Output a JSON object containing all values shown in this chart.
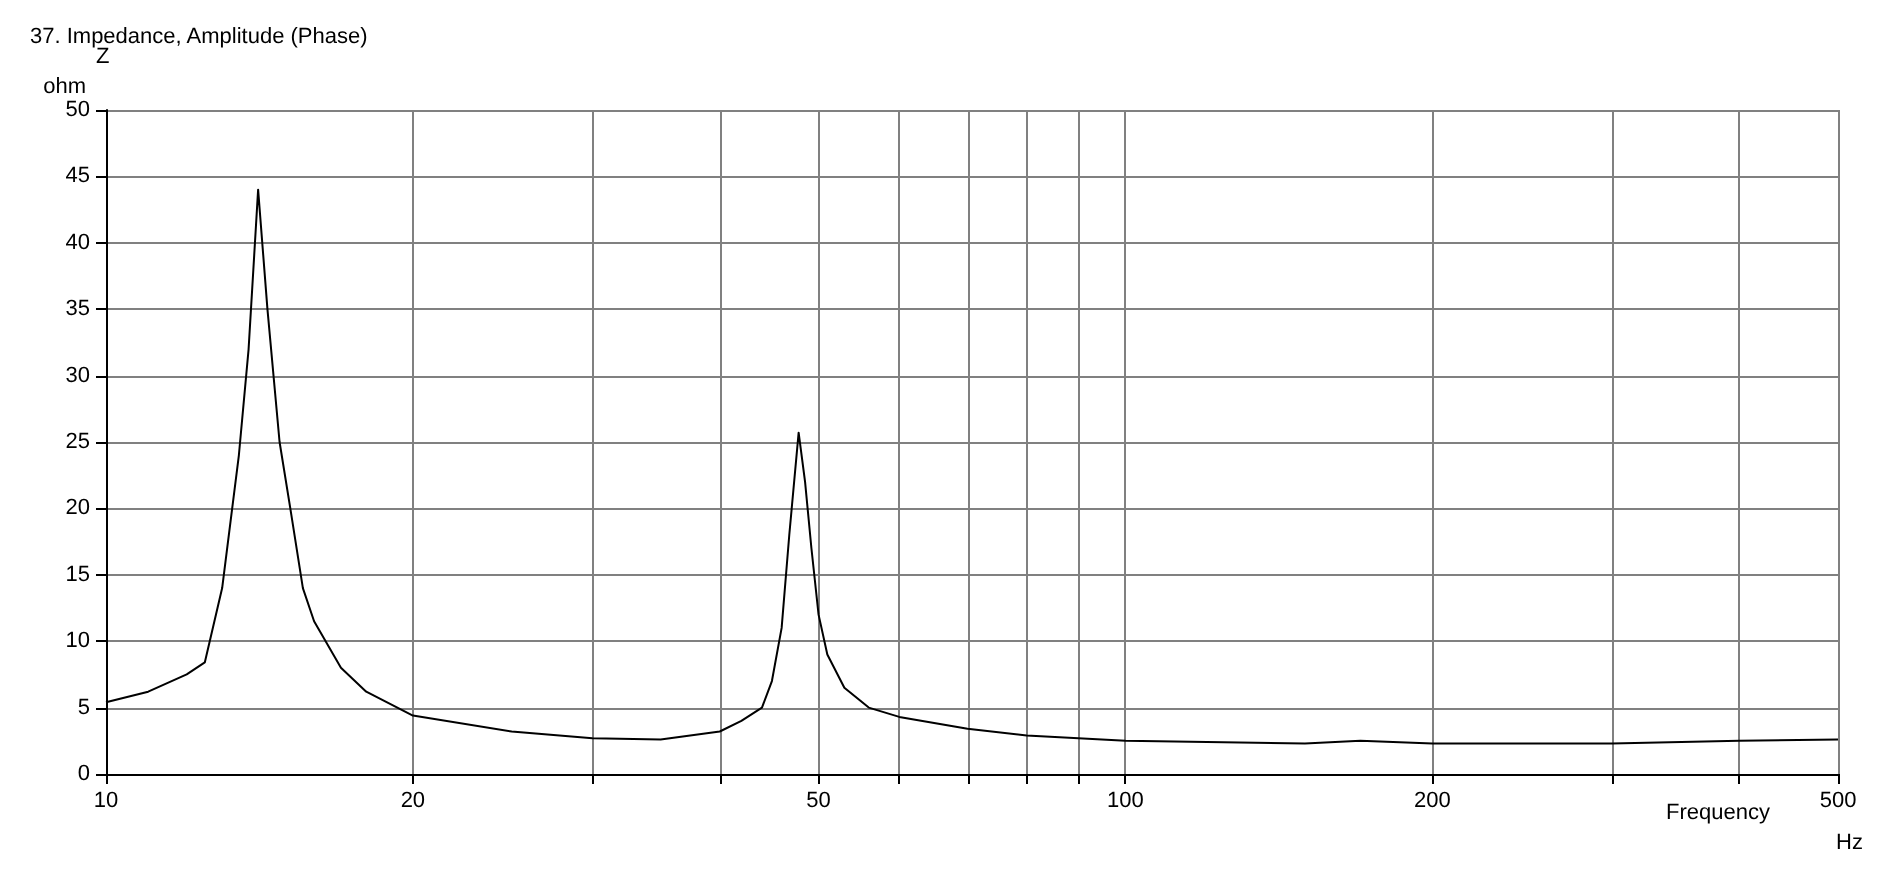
{
  "chart_data": {
    "type": "line",
    "title": "37. Impedance, Amplitude (Phase)",
    "xlabel": "Frequency",
    "ylabel": "ohm",
    "annotations": [
      "Z",
      "Hz"
    ],
    "log": "x",
    "grid": true,
    "marker": "none",
    "line_style": "solid",
    "xlim": [
      10,
      500
    ],
    "ylim": [
      0,
      50
    ],
    "xticks": [
      10,
      20,
      {
        "value": 30,
        "label": null
      },
      {
        "value": 40,
        "label": null
      },
      50,
      {
        "value": 60,
        "label": null
      },
      {
        "value": 70,
        "label": null
      },
      {
        "value": 80,
        "label": null
      },
      {
        "value": 90,
        "label": null
      },
      100,
      200,
      {
        "value": 300,
        "label": null
      },
      {
        "value": 400,
        "label": null
      },
      500
    ],
    "yticks": [
      0,
      5,
      10,
      15,
      20,
      25,
      30,
      35,
      40,
      45,
      50
    ],
    "x": [
      10,
      11,
      12,
      12.5,
      13,
      13.5,
      13.8,
      14.1,
      14.4,
      14.8,
      15.2,
      15.6,
      16,
      17,
      18,
      20,
      25,
      30,
      35,
      40,
      42,
      44,
      45,
      46,
      46.8,
      47.8,
      48.5,
      49.2,
      50,
      51,
      53,
      56,
      60,
      70,
      80,
      100,
      150,
      170,
      200,
      300,
      400,
      500
    ],
    "series": [
      {
        "color": "#000000",
        "values": [
          5.4,
          6.2,
          7.5,
          8.4,
          14,
          24,
          32,
          44,
          35,
          25,
          19.5,
          14,
          11.5,
          8,
          6.2,
          4.4,
          3.2,
          2.7,
          2.6,
          3.2,
          4,
          5,
          7,
          11,
          18,
          25.7,
          22,
          17,
          12,
          9,
          6.5,
          5,
          4.3,
          3.4,
          2.9,
          2.5,
          2.3,
          2.5,
          2.3,
          2.3,
          2.5,
          2.6
        ]
      }
    ]
  }
}
